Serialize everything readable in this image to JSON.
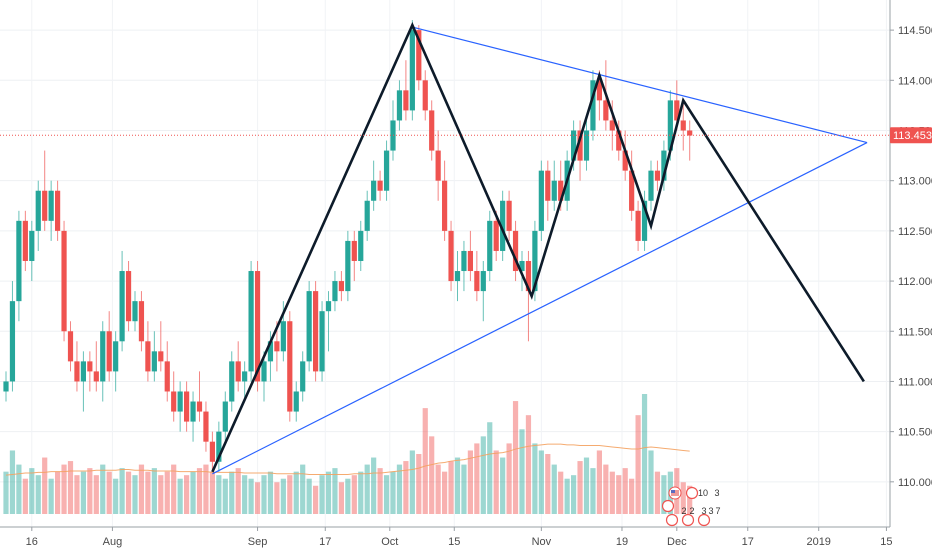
{
  "chart_data": {
    "type": "candlestick",
    "title": "",
    "xlabel": "",
    "ylabel": "",
    "ylim": [
      109.55,
      114.8
    ],
    "grid": true,
    "y_ticks": [
      "114.500",
      "114.000",
      "113.500",
      "113.000",
      "112.500",
      "112.000",
      "111.500",
      "111.000",
      "110.500",
      "110.000"
    ],
    "x_ticks": [
      "16",
      "Aug",
      "Sep",
      "17",
      "Oct",
      "15",
      "Nov",
      "19",
      "Dec",
      "17",
      "2019",
      "15"
    ],
    "last_price": "113.453",
    "colors": {
      "up": "#26a69a",
      "down": "#ef5350",
      "trendline": "#2962ff",
      "pattern": "#0d1b2a",
      "last_price": "#ef5350"
    },
    "candles": [
      [
        110.9,
        111.1,
        110.8,
        111.0
      ],
      [
        111.0,
        112.0,
        110.9,
        111.8
      ],
      [
        111.8,
        112.7,
        111.6,
        112.6
      ],
      [
        112.6,
        112.7,
        112.1,
        112.2
      ],
      [
        112.2,
        112.6,
        112.0,
        112.5
      ],
      [
        112.5,
        113.0,
        112.3,
        112.9
      ],
      [
        112.9,
        113.3,
        112.5,
        112.6
      ],
      [
        112.6,
        113.0,
        112.4,
        112.9
      ],
      [
        112.9,
        113.0,
        112.4,
        112.5
      ],
      [
        112.5,
        112.6,
        111.4,
        111.5
      ],
      [
        111.5,
        111.6,
        111.1,
        111.2
      ],
      [
        111.2,
        111.4,
        110.9,
        111.0
      ],
      [
        111.0,
        111.3,
        110.7,
        111.2
      ],
      [
        111.2,
        111.3,
        110.9,
        111.1
      ],
      [
        111.1,
        111.4,
        110.9,
        111.0
      ],
      [
        111.0,
        111.6,
        110.8,
        111.5
      ],
      [
        111.5,
        111.7,
        111.0,
        111.1
      ],
      [
        111.1,
        111.5,
        110.9,
        111.4
      ],
      [
        111.4,
        112.3,
        111.3,
        112.1
      ],
      [
        112.1,
        112.2,
        111.5,
        111.6
      ],
      [
        111.6,
        111.9,
        111.5,
        111.8
      ],
      [
        111.8,
        111.9,
        111.3,
        111.4
      ],
      [
        111.4,
        111.6,
        111.0,
        111.1
      ],
      [
        111.1,
        111.5,
        111.0,
        111.3
      ],
      [
        111.3,
        111.6,
        111.1,
        111.2
      ],
      [
        111.2,
        111.4,
        110.8,
        110.9
      ],
      [
        110.9,
        111.1,
        110.6,
        110.7
      ],
      [
        110.7,
        111.0,
        110.5,
        110.9
      ],
      [
        110.9,
        111.0,
        110.5,
        110.6
      ],
      [
        110.6,
        110.9,
        110.4,
        110.8
      ],
      [
        110.8,
        111.1,
        110.6,
        110.7
      ],
      [
        110.7,
        110.8,
        110.3,
        110.4
      ],
      [
        110.4,
        110.5,
        110.1,
        110.2
      ],
      [
        110.2,
        110.6,
        110.1,
        110.5
      ],
      [
        110.5,
        110.9,
        110.4,
        110.8
      ],
      [
        110.8,
        111.3,
        110.7,
        111.2
      ],
      [
        111.2,
        111.4,
        110.9,
        111.0
      ],
      [
        111.0,
        111.2,
        110.8,
        111.1
      ],
      [
        111.1,
        112.2,
        111.0,
        112.1
      ],
      [
        112.1,
        112.2,
        110.9,
        111.0
      ],
      [
        111.0,
        111.3,
        110.8,
        111.2
      ],
      [
        111.2,
        111.5,
        111.0,
        111.4
      ],
      [
        111.4,
        111.6,
        111.1,
        111.3
      ],
      [
        111.3,
        111.8,
        111.2,
        111.6
      ],
      [
        111.6,
        111.7,
        110.6,
        110.7
      ],
      [
        110.7,
        111.0,
        110.6,
        110.9
      ],
      [
        110.9,
        111.3,
        110.8,
        111.2
      ],
      [
        111.2,
        112.0,
        111.1,
        111.9
      ],
      [
        111.9,
        112.0,
        111.0,
        111.1
      ],
      [
        111.1,
        111.8,
        111.0,
        111.7
      ],
      [
        111.7,
        111.9,
        111.3,
        111.8
      ],
      [
        111.8,
        112.1,
        111.7,
        112.0
      ],
      [
        112.0,
        112.1,
        111.8,
        111.9
      ],
      [
        111.9,
        112.5,
        111.8,
        112.4
      ],
      [
        112.4,
        112.5,
        112.0,
        112.2
      ],
      [
        112.2,
        112.6,
        112.1,
        112.5
      ],
      [
        112.5,
        112.9,
        112.4,
        112.8
      ],
      [
        112.8,
        113.2,
        112.7,
        113.0
      ],
      [
        113.0,
        113.1,
        112.8,
        112.9
      ],
      [
        112.9,
        113.4,
        112.8,
        113.3
      ],
      [
        113.3,
        113.8,
        113.2,
        113.6
      ],
      [
        113.6,
        114.0,
        113.5,
        113.9
      ],
      [
        113.9,
        114.2,
        113.6,
        113.7
      ],
      [
        113.7,
        114.6,
        113.6,
        114.5
      ],
      [
        114.5,
        114.55,
        113.9,
        114.0
      ],
      [
        114.0,
        114.1,
        113.6,
        113.7
      ],
      [
        113.7,
        113.8,
        113.2,
        113.3
      ],
      [
        113.3,
        113.5,
        112.8,
        113.0
      ],
      [
        113.0,
        113.2,
        112.4,
        112.5
      ],
      [
        112.5,
        112.6,
        111.9,
        112.0
      ],
      [
        112.0,
        112.3,
        111.8,
        112.1
      ],
      [
        112.1,
        112.4,
        111.9,
        112.3
      ],
      [
        112.3,
        112.5,
        112.0,
        112.1
      ],
      [
        112.1,
        112.3,
        111.8,
        111.9
      ],
      [
        111.9,
        112.2,
        111.6,
        112.1
      ],
      [
        112.1,
        112.7,
        112.0,
        112.6
      ],
      [
        112.6,
        112.7,
        112.2,
        112.3
      ],
      [
        112.3,
        112.9,
        112.2,
        112.8
      ],
      [
        112.8,
        112.9,
        112.4,
        112.5
      ],
      [
        112.5,
        112.6,
        112.0,
        112.1
      ],
      [
        112.1,
        112.3,
        111.9,
        112.2
      ],
      [
        112.2,
        112.3,
        111.4,
        111.9
      ],
      [
        111.9,
        112.6,
        111.8,
        112.5
      ],
      [
        112.5,
        113.2,
        112.4,
        113.1
      ],
      [
        113.1,
        113.2,
        112.6,
        112.8
      ],
      [
        112.8,
        113.2,
        112.7,
        113.0
      ],
      [
        113.0,
        113.2,
        112.7,
        112.8
      ],
      [
        112.8,
        113.3,
        112.7,
        113.2
      ],
      [
        113.2,
        113.6,
        113.1,
        113.5
      ],
      [
        113.5,
        113.6,
        113.0,
        113.2
      ],
      [
        113.2,
        113.6,
        113.1,
        113.5
      ],
      [
        113.5,
        114.1,
        113.4,
        114.0
      ],
      [
        114.0,
        114.1,
        113.6,
        113.8
      ],
      [
        113.8,
        114.2,
        113.5,
        113.6
      ],
      [
        113.6,
        113.8,
        113.3,
        113.5
      ],
      [
        113.5,
        113.6,
        113.2,
        113.3
      ],
      [
        113.3,
        113.5,
        113.0,
        113.1
      ],
      [
        113.1,
        113.3,
        112.6,
        112.7
      ],
      [
        112.7,
        112.8,
        112.3,
        112.4
      ],
      [
        112.4,
        112.9,
        112.3,
        112.8
      ],
      [
        112.8,
        113.2,
        112.7,
        113.1
      ],
      [
        113.1,
        113.2,
        112.9,
        113.0
      ],
      [
        113.0,
        113.4,
        112.9,
        113.3
      ],
      [
        113.3,
        113.9,
        113.2,
        113.8
      ],
      [
        113.8,
        114.0,
        113.5,
        113.6
      ],
      [
        113.6,
        113.8,
        113.3,
        113.5
      ],
      [
        113.5,
        113.6,
        113.2,
        113.45
      ]
    ],
    "volume": [
      60,
      90,
      70,
      50,
      65,
      55,
      80,
      50,
      60,
      70,
      75,
      55,
      60,
      65,
      55,
      70,
      60,
      50,
      65,
      60,
      55,
      70,
      60,
      65,
      55,
      60,
      70,
      50,
      55,
      60,
      65,
      70,
      60,
      55,
      50,
      60,
      65,
      55,
      50,
      45,
      55,
      60,
      45,
      50,
      55,
      60,
      70,
      50,
      40,
      55,
      60,
      65,
      45,
      50,
      55,
      60,
      70,
      80,
      65,
      55,
      60,
      70,
      75,
      90,
      85,
      150,
      110,
      70,
      60,
      75,
      80,
      70,
      90,
      100,
      110,
      130,
      90,
      80,
      100,
      160,
      120,
      140,
      100,
      90,
      85,
      70,
      60,
      50,
      55,
      75,
      80,
      65,
      90,
      70,
      60,
      55,
      65,
      50,
      140,
      170,
      90,
      60,
      55,
      60,
      65,
      45,
      40
    ],
    "volume_ma": [
      55,
      56,
      57,
      58,
      58,
      59,
      59,
      60,
      60,
      60,
      61,
      61,
      61,
      61,
      62,
      62,
      62,
      62,
      63,
      63,
      62,
      62,
      62,
      61,
      61,
      61,
      61,
      60,
      60,
      60,
      60,
      60,
      59,
      59,
      59,
      59,
      59,
      58,
      58,
      58,
      58,
      58,
      57,
      57,
      57,
      57,
      57,
      56,
      56,
      56,
      56,
      56,
      56,
      56,
      57,
      57,
      57,
      58,
      58,
      59,
      60,
      61,
      62,
      63,
      65,
      68,
      70,
      72,
      73,
      75,
      76,
      77,
      79,
      81,
      83,
      85,
      86,
      87,
      89,
      92,
      94,
      96,
      97,
      98,
      99,
      99,
      99,
      98,
      98,
      97,
      97,
      97,
      97,
      96,
      95,
      94,
      93,
      92,
      92,
      94,
      95,
      94,
      93,
      92,
      91,
      90,
      89
    ],
    "volume_max": 170,
    "trendlines": [
      {
        "name": "upper",
        "from": [
          63,
          114.53
        ],
        "to": [
          133.5,
          113.38
        ]
      },
      {
        "name": "lower",
        "from": [
          32,
          110.08
        ],
        "to": [
          133.5,
          113.38
        ]
      }
    ],
    "pattern_path": [
      [
        32,
        110.1
      ],
      [
        63,
        114.55
      ],
      [
        81.5,
        111.85
      ],
      [
        92,
        114.05
      ],
      [
        100,
        112.55
      ],
      [
        105,
        113.8
      ],
      [
        133,
        111.0
      ]
    ],
    "event_badges": [
      "10",
      "3",
      "2",
      "2",
      "3",
      "3",
      "7"
    ]
  }
}
